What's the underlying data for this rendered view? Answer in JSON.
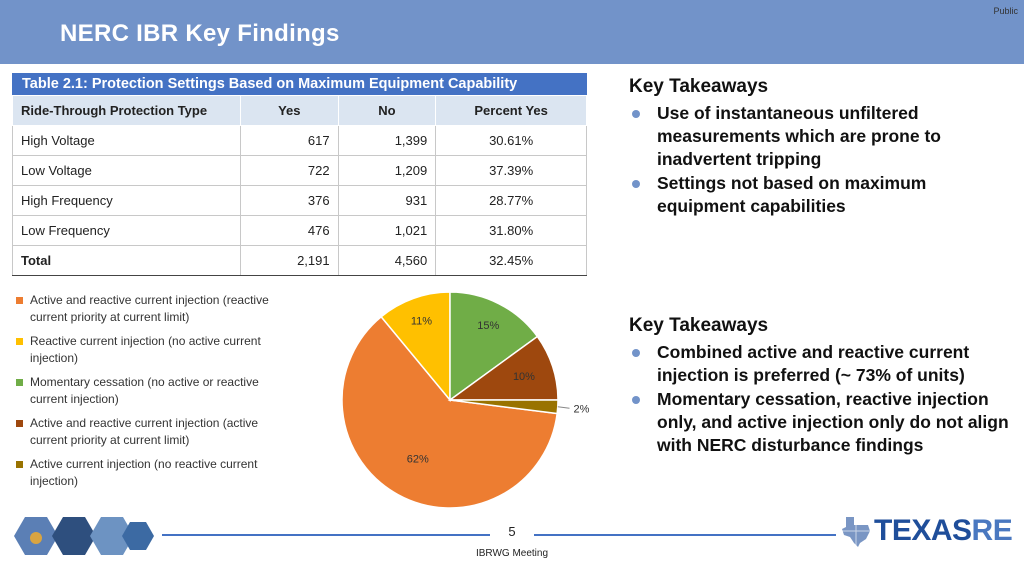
{
  "header": {
    "title": "NERC IBR Key Findings",
    "classification": "Public"
  },
  "table": {
    "title": "Table 2.1: Protection Settings Based on Maximum Equipment Capability",
    "columns": [
      "Ride-Through Protection Type",
      "Yes",
      "No",
      "Percent Yes"
    ],
    "rows": [
      {
        "type": "High Voltage",
        "yes": "617",
        "no": "1,399",
        "pct": "30.61%"
      },
      {
        "type": "Low Voltage",
        "yes": "722",
        "no": "1,209",
        "pct": "37.39%"
      },
      {
        "type": "High Frequency",
        "yes": "376",
        "no": "931",
        "pct": "28.77%"
      },
      {
        "type": "Low Frequency",
        "yes": "476",
        "no": "1,021",
        "pct": "31.80%"
      }
    ],
    "total": {
      "type": "Total",
      "yes": "2,191",
      "no": "4,560",
      "pct": "32.45%"
    }
  },
  "chart_data": {
    "type": "pie",
    "title": "",
    "categories": [
      "Active and reactive current injection (reactive current priority at current limit)",
      "Reactive current injection (no active current injection)",
      "Momentary cessation (no active or reactive current injection)",
      "Active and reactive current injection (active current priority at current limit)",
      "Active current injection (no reactive current injection)"
    ],
    "values": [
      62,
      11,
      15,
      10,
      2
    ],
    "labels": [
      "62%",
      "11%",
      "15%",
      "10%",
      "2%"
    ],
    "colors": [
      "#ed7d31",
      "#ffc000",
      "#70ad47",
      "#9e480e",
      "#997300"
    ],
    "legend_position": "left"
  },
  "takeaways": [
    {
      "heading": "Key Takeaways",
      "bullets": [
        "Use of instantaneous unfiltered measurements which are prone to inadvertent tripping",
        "Settings not based on maximum equipment capabilities"
      ]
    },
    {
      "heading": "Key Takeaways",
      "bullets": [
        "Combined active and reactive current injection is preferred (~ 73% of units)",
        "Momentary cessation, reactive injection only, and active injection only do not align with NERC disturbance findings"
      ]
    }
  ],
  "footer": {
    "page_number": "5",
    "meeting": "IBRWG Meeting",
    "logo_main": "TEXAS",
    "logo_suffix": "RE"
  },
  "colors": {
    "header": "#7293c9",
    "table_title": "#4472c4",
    "table_header": "#dbe5f1",
    "bullet": "#7293c9",
    "logo": "#1f4e9a"
  }
}
